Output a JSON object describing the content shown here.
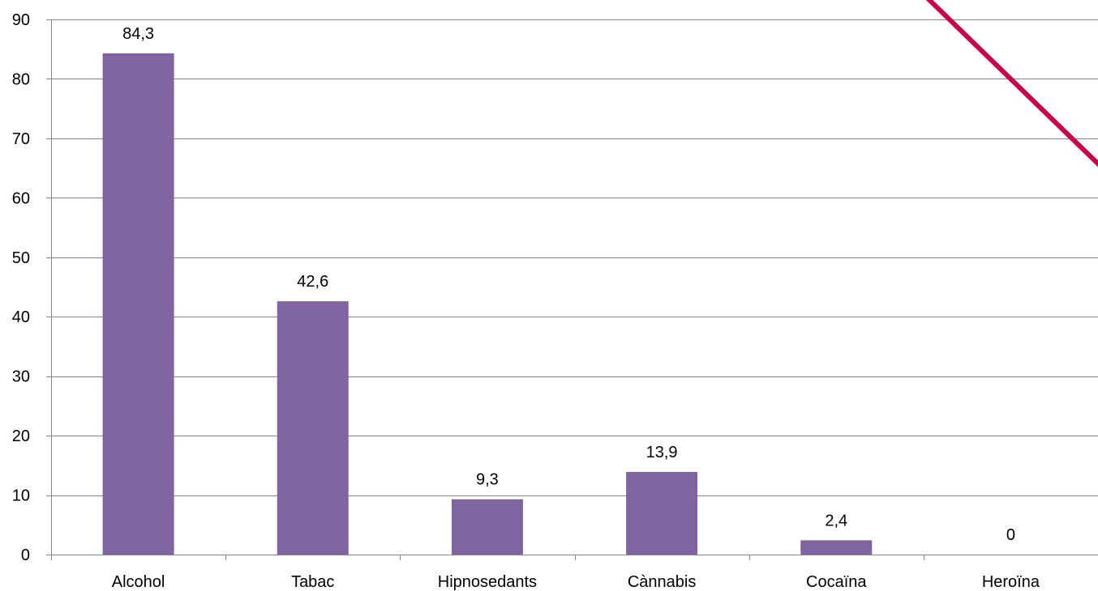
{
  "chart_data": {
    "type": "bar",
    "categories": [
      "Alcohol",
      "Tabac",
      "Hipnosedants",
      "Cànnabis",
      "Cocaïna",
      "Heroïna"
    ],
    "values": [
      84.3,
      42.6,
      9.3,
      13.9,
      2.4,
      0
    ],
    "data_labels": [
      "84,3",
      "42,6",
      "9,3",
      "13,9",
      "2,4",
      "0"
    ],
    "y_ticks": [
      "0",
      "10",
      "20",
      "30",
      "40",
      "50",
      "60",
      "70",
      "80",
      "90"
    ],
    "ylim": [
      0,
      90
    ],
    "y_step": 10,
    "grid": true,
    "bar_color": "#8064a2",
    "grid_color": "#868686",
    "annotation_line_color": "#c8004a",
    "title": "",
    "xlabel": "",
    "ylabel": ""
  }
}
